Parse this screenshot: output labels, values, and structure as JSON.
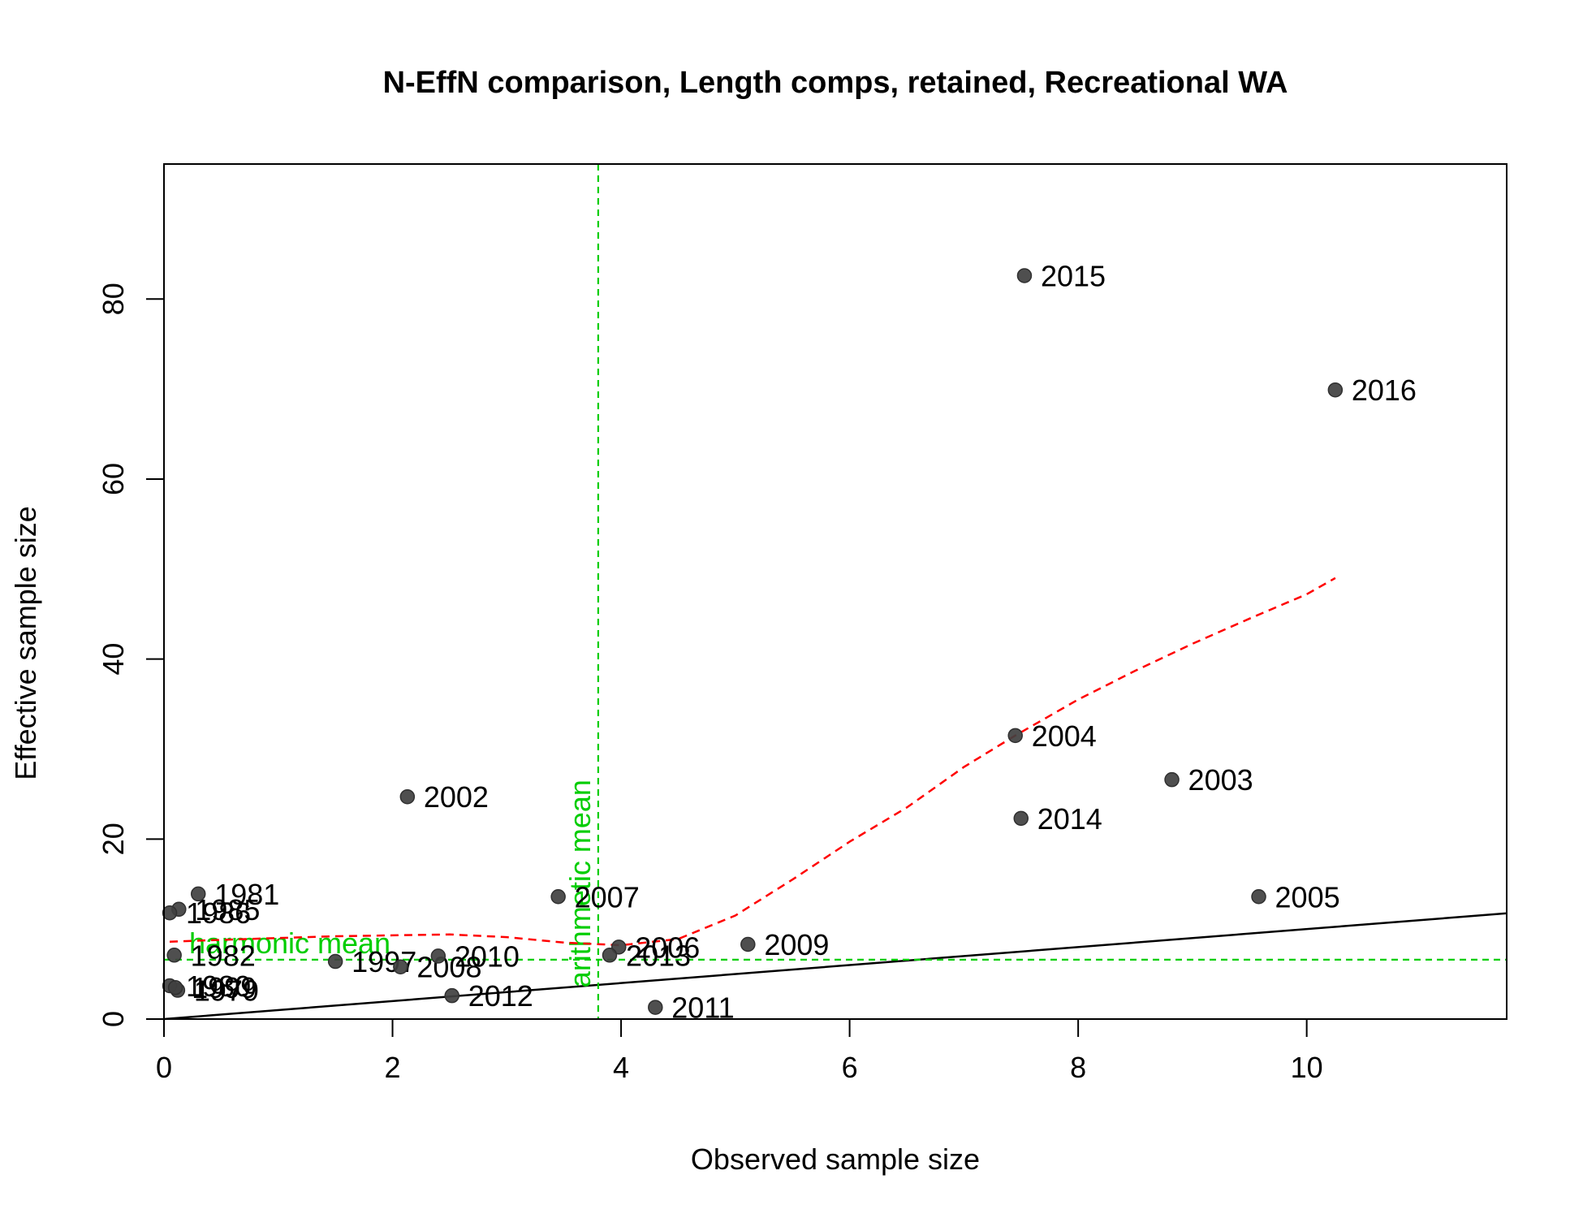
{
  "chart_data": {
    "type": "scatter",
    "title": "N-EffN comparison, Length comps, retained, Recreational WA",
    "xlabel": "Observed sample size",
    "ylabel": "Effective sample size",
    "xlim": [
      0,
      11.75
    ],
    "ylim": [
      0,
      95
    ],
    "xticks": [
      0,
      2,
      4,
      6,
      8,
      10
    ],
    "yticks": [
      0,
      20,
      40,
      60,
      80
    ],
    "grid": false,
    "points": [
      {
        "label": "1979",
        "x": 0.12,
        "y": 3.2
      },
      {
        "label": "1980",
        "x": 0.05,
        "y": 3.7
      },
      {
        "label": "1981",
        "x": 0.3,
        "y": 13.9
      },
      {
        "label": "1982",
        "x": 0.09,
        "y": 7.1
      },
      {
        "label": "1985",
        "x": 0.13,
        "y": 12.2
      },
      {
        "label": "1986",
        "x": 0.05,
        "y": 11.8
      },
      {
        "label": "1997",
        "x": 1.5,
        "y": 6.4
      },
      {
        "label": "1999",
        "x": 0.1,
        "y": 3.5
      },
      {
        "label": "2002",
        "x": 2.13,
        "y": 24.7
      },
      {
        "label": "2003",
        "x": 8.82,
        "y": 26.6
      },
      {
        "label": "2004",
        "x": 7.45,
        "y": 31.5
      },
      {
        "label": "2005",
        "x": 9.58,
        "y": 13.6
      },
      {
        "label": "2006",
        "x": 3.98,
        "y": 8.0
      },
      {
        "label": "2007",
        "x": 3.45,
        "y": 13.6
      },
      {
        "label": "2008",
        "x": 2.07,
        "y": 5.8
      },
      {
        "label": "2009",
        "x": 5.11,
        "y": 8.3
      },
      {
        "label": "2010",
        "x": 2.4,
        "y": 7.0
      },
      {
        "label": "2011",
        "x": 4.3,
        "y": 1.3
      },
      {
        "label": "2012",
        "x": 2.52,
        "y": 2.6
      },
      {
        "label": "2013",
        "x": 3.9,
        "y": 7.1
      },
      {
        "label": "2014",
        "x": 7.5,
        "y": 22.3
      },
      {
        "label": "2015",
        "x": 7.53,
        "y": 82.6
      },
      {
        "label": "2016",
        "x": 10.25,
        "y": 69.9
      }
    ],
    "reference_line": {
      "label": "",
      "slope": 1,
      "intercept": 0
    },
    "harmonic_mean": {
      "label": "harmonic mean",
      "value": 6.6
    },
    "arithmetic_mean": {
      "label": "arithmetic mean",
      "value": 3.8
    },
    "smoother": {
      "x": [
        0.05,
        0.5,
        1.0,
        1.5,
        2.0,
        2.5,
        3.0,
        3.5,
        4.0,
        4.5,
        5.0,
        5.5,
        6.0,
        6.5,
        7.0,
        7.45,
        8.0,
        8.5,
        9.0,
        9.5,
        10.0,
        10.25
      ],
      "y": [
        8.6,
        8.8,
        9.0,
        9.2,
        9.3,
        9.4,
        9.1,
        8.5,
        8.2,
        8.9,
        11.5,
        15.5,
        19.7,
        23.5,
        28.0,
        31.5,
        35.5,
        38.7,
        41.7,
        44.5,
        47.2,
        49.0
      ]
    },
    "colors": {
      "points": "#404040",
      "reference_line": "#000000",
      "means": "#00cd00",
      "smoother": "#ff0000"
    }
  }
}
